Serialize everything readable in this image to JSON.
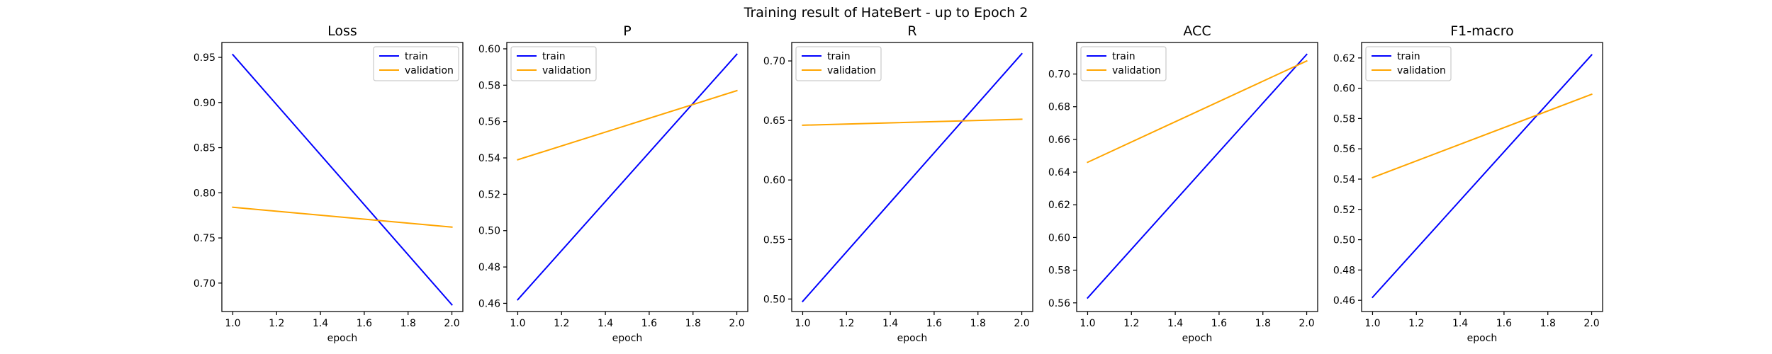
{
  "figure": {
    "suptitle": "Training result of HateBert - up to Epoch 2"
  },
  "chart_data": [
    {
      "type": "line",
      "title": "Loss",
      "xlabel": "epoch",
      "ylabel": "",
      "x": [
        1.0,
        2.0
      ],
      "xlim": [
        0.95,
        2.05
      ],
      "xticks": [
        "1.0",
        "1.2",
        "1.4",
        "1.6",
        "1.8",
        "2.0"
      ],
      "ylim": [
        0.6685,
        0.9665
      ],
      "yticks": [
        "0.70",
        "0.75",
        "0.80",
        "0.85",
        "0.90",
        "0.95"
      ],
      "legend": "upper right",
      "grid": false,
      "series": [
        {
          "name": "train",
          "color": "#0000ff",
          "values": [
            0.953,
            0.676
          ]
        },
        {
          "name": "validation",
          "color": "#ffa500",
          "values": [
            0.784,
            0.762
          ]
        }
      ]
    },
    {
      "type": "line",
      "title": "P",
      "xlabel": "epoch",
      "ylabel": "",
      "x": [
        1.0,
        2.0
      ],
      "xlim": [
        0.95,
        2.05
      ],
      "xticks": [
        "1.0",
        "1.2",
        "1.4",
        "1.6",
        "1.8",
        "2.0"
      ],
      "ylim": [
        0.4555,
        0.6035
      ],
      "yticks": [
        "0.46",
        "0.48",
        "0.50",
        "0.52",
        "0.54",
        "0.56",
        "0.58",
        "0.60"
      ],
      "legend": "upper left",
      "grid": false,
      "series": [
        {
          "name": "train",
          "color": "#0000ff",
          "values": [
            0.462,
            0.597
          ]
        },
        {
          "name": "validation",
          "color": "#ffa500",
          "values": [
            0.539,
            0.577
          ]
        }
      ]
    },
    {
      "type": "line",
      "title": "R",
      "xlabel": "epoch",
      "ylabel": "",
      "x": [
        1.0,
        2.0
      ],
      "xlim": [
        0.95,
        2.05
      ],
      "xticks": [
        "1.0",
        "1.2",
        "1.4",
        "1.6",
        "1.8",
        "2.0"
      ],
      "ylim": [
        0.4895,
        0.7155
      ],
      "yticks": [
        "0.50",
        "0.55",
        "0.60",
        "0.65",
        "0.70"
      ],
      "legend": "upper left",
      "grid": false,
      "series": [
        {
          "name": "train",
          "color": "#0000ff",
          "values": [
            0.498,
            0.706
          ]
        },
        {
          "name": "validation",
          "color": "#ffa500",
          "values": [
            0.646,
            0.651
          ]
        }
      ]
    },
    {
      "type": "line",
      "title": "ACC",
      "xlabel": "epoch",
      "ylabel": "",
      "x": [
        1.0,
        2.0
      ],
      "xlim": [
        0.95,
        2.05
      ],
      "xticks": [
        "1.0",
        "1.2",
        "1.4",
        "1.6",
        "1.8",
        "2.0"
      ],
      "ylim": [
        0.5547,
        0.7193
      ],
      "yticks": [
        "0.56",
        "0.58",
        "0.60",
        "0.62",
        "0.64",
        "0.66",
        "0.68",
        "0.70"
      ],
      "legend": "upper left",
      "grid": false,
      "series": [
        {
          "name": "train",
          "color": "#0000ff",
          "values": [
            0.563,
            0.712
          ]
        },
        {
          "name": "validation",
          "color": "#ffa500",
          "values": [
            0.646,
            0.708
          ]
        }
      ]
    },
    {
      "type": "line",
      "title": "F1-macro",
      "xlabel": "epoch",
      "ylabel": "",
      "x": [
        1.0,
        2.0
      ],
      "xlim": [
        0.95,
        2.05
      ],
      "xticks": [
        "1.0",
        "1.2",
        "1.4",
        "1.6",
        "1.8",
        "2.0"
      ],
      "ylim": [
        0.4526,
        0.6302
      ],
      "yticks": [
        "0.46",
        "0.48",
        "0.50",
        "0.52",
        "0.54",
        "0.56",
        "0.58",
        "0.60",
        "0.62"
      ],
      "legend": "upper left",
      "grid": false,
      "series": [
        {
          "name": "train",
          "color": "#0000ff",
          "values": [
            0.462,
            0.622
          ]
        },
        {
          "name": "validation",
          "color": "#ffa500",
          "values": [
            0.541,
            0.596
          ]
        }
      ]
    }
  ]
}
